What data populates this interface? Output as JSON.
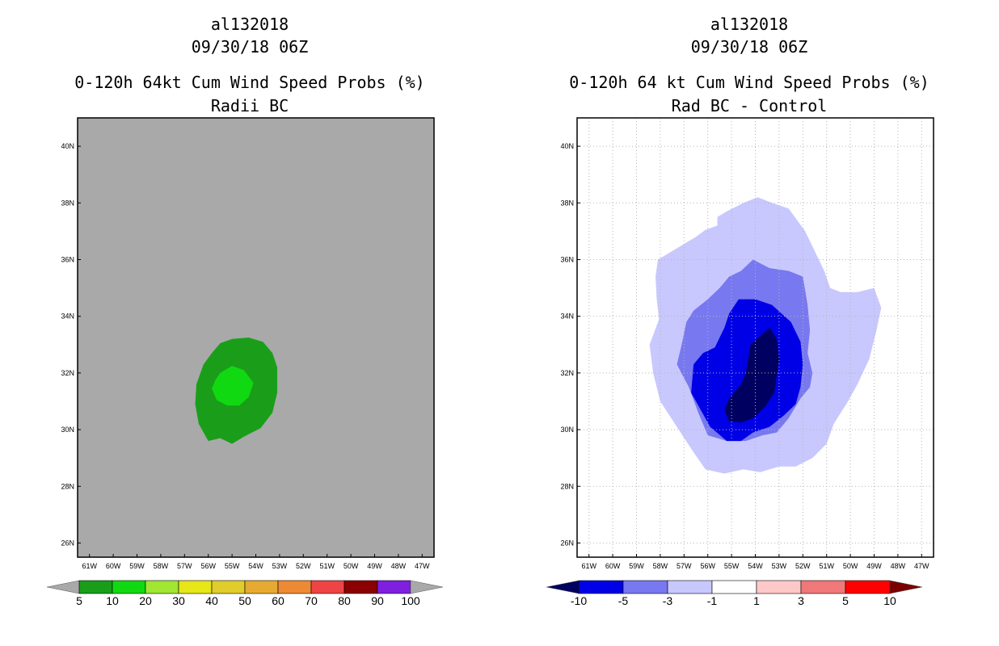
{
  "panels": [
    {
      "id": "left",
      "storm_id": "al132018",
      "datetime": "09/30/18 06Z",
      "title": "0-120h 64kt Cum Wind Speed Probs (%)",
      "subtitle": "Radii BC"
    },
    {
      "id": "right",
      "storm_id": "al132018",
      "datetime": "09/30/18 06Z",
      "title": "0-120h 64 kt Cum Wind Speed Probs (%)",
      "subtitle": "Rad BC - Control"
    }
  ],
  "chart_data": [
    {
      "type": "contour_map",
      "title": "0-120h 64kt Cum Wind Speed Probs (%)",
      "subtitle": "Radii BC",
      "xlim": [
        -61.5,
        -46.5
      ],
      "ylim": [
        25.5,
        41
      ],
      "x_tick_labels": [
        "61W",
        "60W",
        "59W",
        "58W",
        "57W",
        "56W",
        "55W",
        "54W",
        "53W",
        "52W",
        "51W",
        "50W",
        "49W",
        "48W",
        "47W"
      ],
      "x_tick_values": [
        -61,
        -60,
        -59,
        -58,
        -57,
        -56,
        -55,
        -54,
        -53,
        -52,
        -51,
        -50,
        -49,
        -48,
        -47
      ],
      "y_tick_labels": [
        "26N",
        "28N",
        "30N",
        "32N",
        "34N",
        "36N",
        "38N",
        "40N"
      ],
      "y_tick_values": [
        26,
        28,
        30,
        32,
        34,
        36,
        38,
        40
      ],
      "grid": false,
      "background_color": "#a9a9a9",
      "contours": [
        {
          "level": 5,
          "color": "#1a9e1a",
          "lonlat": [
            [
              -55.5,
              33.05
            ],
            [
              -55.0,
              33.2
            ],
            [
              -54.3,
              33.25
            ],
            [
              -53.7,
              33.1
            ],
            [
              -53.3,
              32.7
            ],
            [
              -53.1,
              32.2
            ],
            [
              -53.1,
              31.3
            ],
            [
              -53.3,
              30.6
            ],
            [
              -53.8,
              30.05
            ],
            [
              -54.5,
              29.75
            ],
            [
              -55.0,
              29.5
            ],
            [
              -55.5,
              29.7
            ],
            [
              -56.0,
              29.6
            ],
            [
              -56.4,
              30.2
            ],
            [
              -56.55,
              30.9
            ],
            [
              -56.5,
              31.6
            ],
            [
              -56.2,
              32.3
            ],
            [
              -55.85,
              32.7
            ]
          ]
        },
        {
          "level": 10,
          "color": "#11d911",
          "lonlat": [
            [
              -55.5,
              32.0
            ],
            [
              -55.0,
              32.25
            ],
            [
              -54.5,
              32.1
            ],
            [
              -54.1,
              31.65
            ],
            [
              -54.3,
              31.15
            ],
            [
              -54.7,
              30.85
            ],
            [
              -55.2,
              30.85
            ],
            [
              -55.65,
              31.05
            ],
            [
              -55.85,
              31.45
            ],
            [
              -55.7,
              31.75
            ]
          ]
        }
      ],
      "colorbar": {
        "levels": [
          "5",
          "10",
          "20",
          "30",
          "40",
          "50",
          "60",
          "70",
          "80",
          "90",
          "100"
        ],
        "colors": [
          "#1a9e1a",
          "#11d911",
          "#a0e632",
          "#e6e619",
          "#e0cc2a",
          "#e6aa33",
          "#ee8a33",
          "#ee4444",
          "#8b0000",
          "#7f1fe0"
        ],
        "end_color": "#a9a9a9"
      }
    },
    {
      "type": "contour_map",
      "title": "0-120h 64 kt Cum Wind Speed Probs (%)",
      "subtitle": "Rad BC - Control",
      "xlim": [
        -61.5,
        -46.5
      ],
      "ylim": [
        25.5,
        41
      ],
      "x_tick_labels": [
        "61W",
        "60W",
        "59W",
        "58W",
        "57W",
        "56W",
        "55W",
        "54W",
        "53W",
        "52W",
        "51W",
        "50W",
        "49W",
        "48W",
        "47W"
      ],
      "x_tick_values": [
        -61,
        -60,
        -59,
        -58,
        -57,
        -56,
        -55,
        -54,
        -53,
        -52,
        -51,
        -50,
        -49,
        -48,
        -47
      ],
      "y_tick_labels": [
        "26N",
        "28N",
        "30N",
        "32N",
        "34N",
        "36N",
        "38N",
        "40N"
      ],
      "y_tick_values": [
        26,
        28,
        30,
        32,
        34,
        36,
        38,
        40
      ],
      "grid": true,
      "background_color": "#ffffff",
      "contours": [
        {
          "level": -1,
          "color": "#c8c8ff",
          "lonlat": [
            [
              -55.2,
              37.7
            ],
            [
              -54.5,
              38.0
            ],
            [
              -53.9,
              38.2
            ],
            [
              -53.3,
              38.0
            ],
            [
              -52.6,
              37.8
            ],
            [
              -51.9,
              37.0
            ],
            [
              -51.5,
              36.3
            ],
            [
              -51.1,
              35.6
            ],
            [
              -50.85,
              35.0
            ],
            [
              -50.4,
              34.85
            ],
            [
              -49.7,
              34.85
            ],
            [
              -49.0,
              35.0
            ],
            [
              -48.7,
              34.3
            ],
            [
              -48.9,
              33.5
            ],
            [
              -49.2,
              32.5
            ],
            [
              -49.7,
              31.6
            ],
            [
              -50.1,
              31.0
            ],
            [
              -50.7,
              30.2
            ],
            [
              -51.0,
              29.5
            ],
            [
              -51.6,
              29.0
            ],
            [
              -52.3,
              28.7
            ],
            [
              -53.0,
              28.7
            ],
            [
              -53.8,
              28.5
            ],
            [
              -54.5,
              28.6
            ],
            [
              -55.3,
              28.45
            ],
            [
              -56.1,
              28.6
            ],
            [
              -56.6,
              29.2
            ],
            [
              -57.3,
              30.1
            ],
            [
              -58.0,
              31.0
            ],
            [
              -58.3,
              32.0
            ],
            [
              -58.45,
              33.0
            ],
            [
              -58.05,
              33.9
            ],
            [
              -58.15,
              34.6
            ],
            [
              -58.2,
              35.4
            ],
            [
              -58.1,
              36.0
            ],
            [
              -57.5,
              36.3
            ],
            [
              -56.9,
              36.6
            ],
            [
              -56.5,
              36.8
            ],
            [
              -56.1,
              37.05
            ],
            [
              -55.6,
              37.2
            ],
            [
              -55.6,
              37.5
            ]
          ]
        },
        {
          "level": -3,
          "color": "#7878f0",
          "lonlat": [
            [
              -55.1,
              35.4
            ],
            [
              -54.6,
              35.6
            ],
            [
              -54.1,
              36.0
            ],
            [
              -53.4,
              35.7
            ],
            [
              -52.6,
              35.6
            ],
            [
              -52.0,
              35.4
            ],
            [
              -51.8,
              34.4
            ],
            [
              -51.7,
              33.5
            ],
            [
              -51.8,
              32.7
            ],
            [
              -51.6,
              32.0
            ],
            [
              -51.7,
              31.5
            ],
            [
              -52.1,
              31.1
            ],
            [
              -52.6,
              30.4
            ],
            [
              -53.1,
              29.9
            ],
            [
              -53.7,
              29.8
            ],
            [
              -54.4,
              29.6
            ],
            [
              -55.2,
              29.6
            ],
            [
              -56.0,
              29.8
            ],
            [
              -56.4,
              30.6
            ],
            [
              -56.8,
              31.5
            ],
            [
              -57.3,
              32.3
            ],
            [
              -57.1,
              33.0
            ],
            [
              -56.9,
              33.8
            ],
            [
              -56.6,
              34.2
            ],
            [
              -56.0,
              34.6
            ],
            [
              -55.5,
              35.0
            ]
          ]
        },
        {
          "level": -5,
          "color": "#0000e6",
          "lonlat": [
            [
              -54.7,
              34.6
            ],
            [
              -54.0,
              34.6
            ],
            [
              -53.3,
              34.4
            ],
            [
              -52.5,
              33.8
            ],
            [
              -52.1,
              33.1
            ],
            [
              -52.0,
              32.3
            ],
            [
              -52.1,
              31.5
            ],
            [
              -52.3,
              30.9
            ],
            [
              -52.8,
              30.5
            ],
            [
              -53.4,
              30.1
            ],
            [
              -54.1,
              29.9
            ],
            [
              -54.6,
              29.6
            ],
            [
              -55.2,
              29.6
            ],
            [
              -55.9,
              30.1
            ],
            [
              -56.3,
              30.7
            ],
            [
              -56.7,
              31.3
            ],
            [
              -56.6,
              32.3
            ],
            [
              -56.2,
              32.7
            ],
            [
              -55.7,
              32.9
            ],
            [
              -55.3,
              33.6
            ],
            [
              -55.1,
              34.1
            ]
          ]
        },
        {
          "level": -10,
          "color": "#000060",
          "lonlat": [
            [
              -53.8,
              33.3
            ],
            [
              -53.4,
              33.6
            ],
            [
              -53.1,
              33.2
            ],
            [
              -53.0,
              32.5
            ],
            [
              -53.1,
              31.9
            ],
            [
              -53.2,
              31.3
            ],
            [
              -53.6,
              30.8
            ],
            [
              -54.1,
              30.4
            ],
            [
              -54.6,
              30.25
            ],
            [
              -55.1,
              30.3
            ],
            [
              -55.3,
              30.7
            ],
            [
              -55.1,
              31.1
            ],
            [
              -54.6,
              31.6
            ],
            [
              -54.4,
              32.0
            ],
            [
              -54.3,
              32.5
            ],
            [
              -54.2,
              33.0
            ]
          ]
        }
      ],
      "colorbar": {
        "levels": [
          "-10",
          "-5",
          "-3",
          "-1",
          "1",
          "3",
          "5",
          "10"
        ],
        "colors": [
          "#0000e6",
          "#7878f0",
          "#c8c8ff",
          "#ffffff",
          "#ffc8c8",
          "#f07878",
          "#ff0000"
        ],
        "low_end_color": "#000060",
        "high_end_color": "#7a0000"
      }
    }
  ]
}
